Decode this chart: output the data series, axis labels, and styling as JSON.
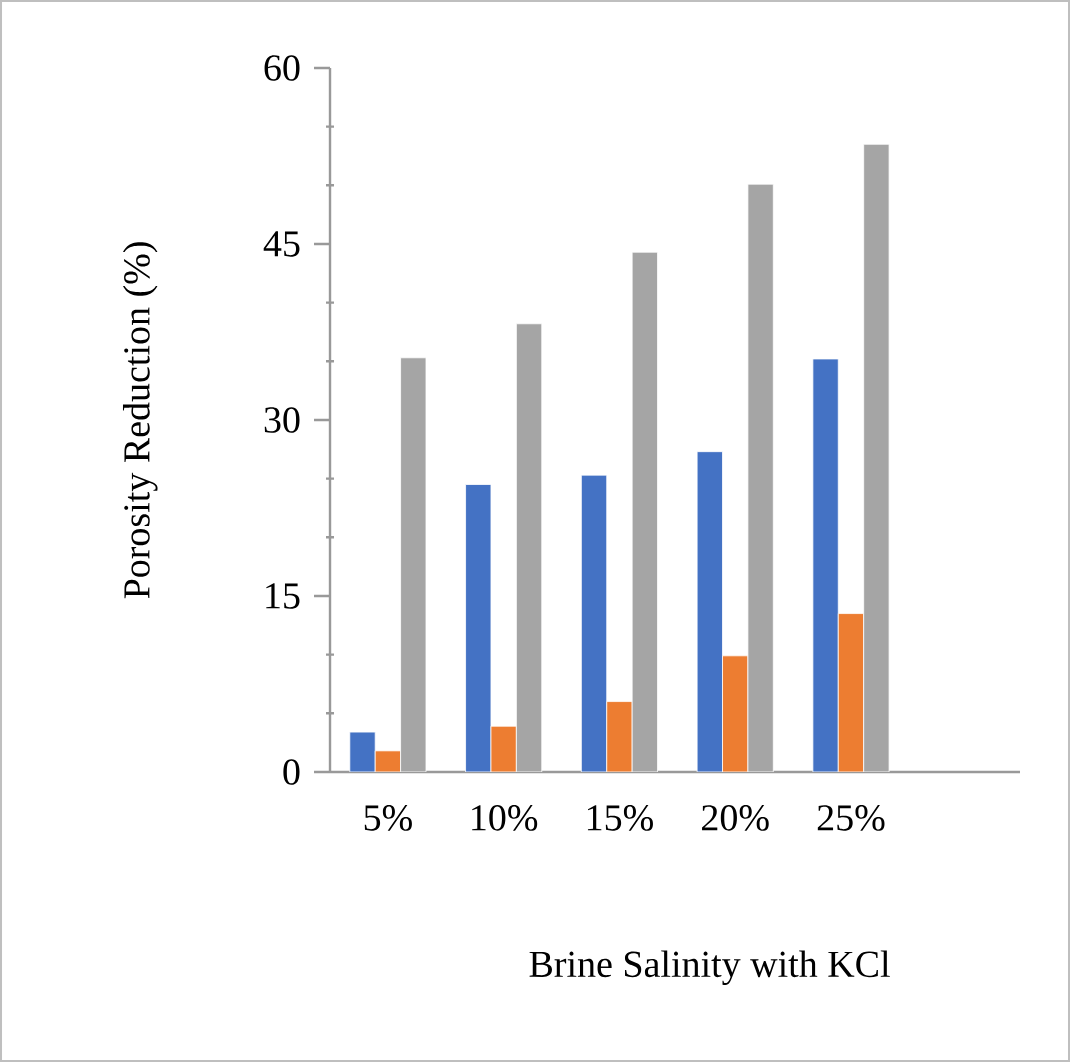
{
  "chart_data": {
    "type": "bar",
    "xlabel": "Brine Salinity with KCl",
    "ylabel": "Porosity Reduction (%)",
    "categories": [
      "5%",
      "10%",
      "15%",
      "20%",
      "25%"
    ],
    "series": [
      {
        "color": "#4472c4",
        "values": [
          3.4,
          24.5,
          25.3,
          27.3,
          35.2
        ]
      },
      {
        "color": "#ed7d31",
        "values": [
          1.8,
          3.9,
          6.0,
          9.9,
          13.5
        ]
      },
      {
        "color": "#a5a5a5",
        "values": [
          35.3,
          38.2,
          44.3,
          50.1,
          53.5
        ]
      }
    ],
    "ylim": [
      0,
      60
    ],
    "yticks": [
      0,
      15,
      30,
      45,
      60
    ],
    "grid": false
  }
}
